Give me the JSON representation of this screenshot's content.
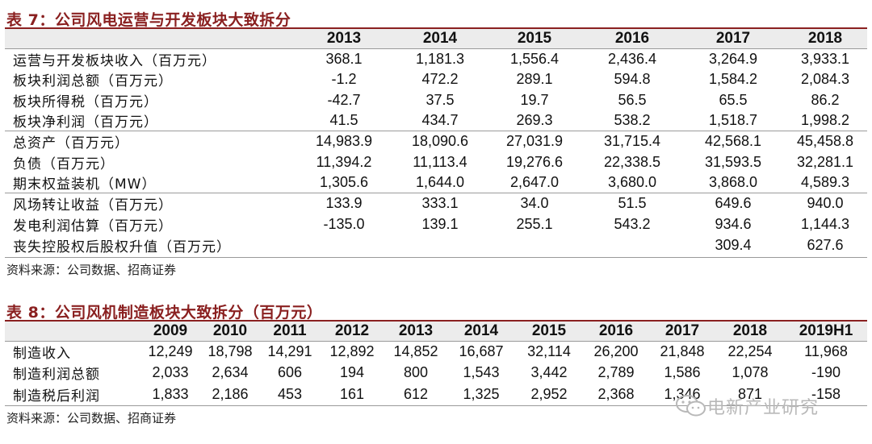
{
  "table7": {
    "caption": "表 7：公司风电运营与开发板块大致拆分",
    "years": [
      "2013",
      "2014",
      "2015",
      "2016",
      "2017",
      "2018"
    ],
    "groups": [
      [
        {
          "label": "运营与开发板块收入（百万元）",
          "values": [
            "368.1",
            "1,181.3",
            "1,556.4",
            "2,436.4",
            "3,264.9",
            "3,933.1"
          ]
        },
        {
          "label": "板块利润总额（百万元）",
          "values": [
            "-1.2",
            "472.2",
            "289.1",
            "594.8",
            "1,584.2",
            "2,084.3"
          ]
        },
        {
          "label": "板块所得税（百万元）",
          "values": [
            "-42.7",
            "37.5",
            "19.7",
            "56.5",
            "65.5",
            "86.2"
          ]
        },
        {
          "label": "板块净利润（百万元）",
          "values": [
            "41.5",
            "434.7",
            "269.3",
            "538.2",
            "1,518.7",
            "1,998.2"
          ]
        }
      ],
      [
        {
          "label": "总资产（百万元）",
          "values": [
            "14,983.9",
            "18,090.6",
            "27,031.9",
            "31,715.4",
            "42,568.1",
            "45,458.8"
          ]
        },
        {
          "label": "负债（百万元）",
          "values": [
            "11,394.2",
            "11,113.4",
            "19,276.6",
            "22,338.5",
            "31,593.5",
            "32,281.1"
          ]
        },
        {
          "label": "期末权益装机（MW）",
          "values": [
            "1,305.6",
            "1,644.0",
            "2,647.0",
            "3,680.0",
            "3,868.0",
            "4,589.3"
          ]
        }
      ],
      [
        {
          "label": "风场转让收益（百万元）",
          "values": [
            "133.9",
            "333.1",
            "34.0",
            "51.5",
            "649.6",
            "940.0"
          ]
        },
        {
          "label": "发电利润估算（百万元）",
          "values": [
            "-135.0",
            "139.1",
            "255.1",
            "543.2",
            "934.6",
            "1,144.3"
          ]
        },
        {
          "label": "丧失控股权后股权升值（百万元）",
          "values": [
            "",
            "",
            "",
            "",
            "309.4",
            "627.6"
          ]
        }
      ]
    ],
    "source": "资料来源：公司数据、招商证券"
  },
  "table8": {
    "caption": "表 8：公司风机制造板块大致拆分（百万元）",
    "years": [
      "2009",
      "2010",
      "2011",
      "2012",
      "2013",
      "2014",
      "2015",
      "2016",
      "2017",
      "2018",
      "2019H1"
    ],
    "rows": [
      {
        "label": "制造收入",
        "values": [
          "12,249",
          "18,798",
          "14,291",
          "12,892",
          "14,852",
          "16,687",
          "32,114",
          "26,200",
          "21,848",
          "22,254",
          "11,968"
        ]
      },
      {
        "label": "制造利润总额",
        "values": [
          "2,033",
          "2,634",
          "606",
          "194",
          "800",
          "1,543",
          "3,442",
          "2,789",
          "1,586",
          "1,078",
          "-190"
        ]
      },
      {
        "label": "制造税后利润",
        "values": [
          "1,833",
          "2,186",
          "453",
          "161",
          "612",
          "1,325",
          "2,952",
          "2,368",
          "1,346",
          "871",
          "-158"
        ]
      }
    ],
    "source": "资料来源：公司数据、招商证券"
  },
  "watermark": {
    "text": "电新产业研究",
    "icon": "wechat-icon"
  }
}
